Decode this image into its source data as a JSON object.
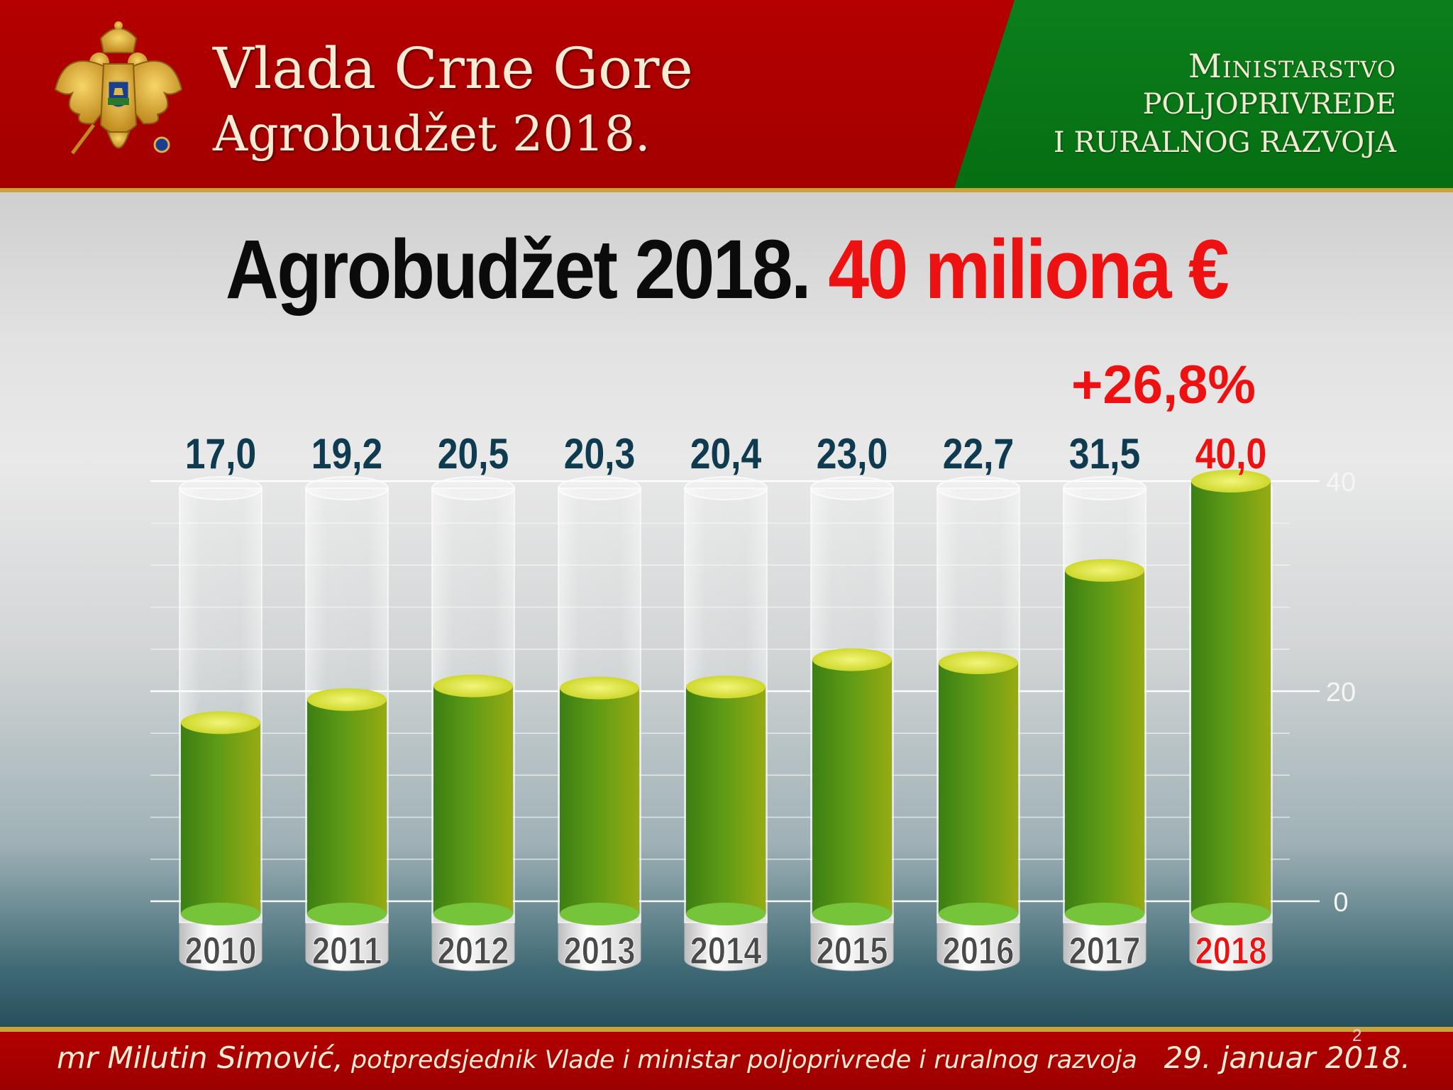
{
  "header": {
    "title_line1": "Vlada Crne Gore",
    "title_line2": "Agrobudžet 2018.",
    "ministry_line1": "Ministarstvo",
    "ministry_line2": "POLJOPRIVREDE",
    "ministry_line3": "I RURALNOG RAZVOJA",
    "red_color": "#a80000",
    "green_color": "#0a7a18"
  },
  "headline": {
    "part1": "Agrobudžet 2018.",
    "part2": "40 miliona €"
  },
  "chart_data": {
    "type": "bar",
    "categories": [
      "2010",
      "2011",
      "2012",
      "2013",
      "2014",
      "2015",
      "2016",
      "2017",
      "2018"
    ],
    "values": [
      17.0,
      19.2,
      20.5,
      20.3,
      20.4,
      23.0,
      22.7,
      31.5,
      40.0
    ],
    "value_labels": [
      "17,0",
      "19,2",
      "20,5",
      "20,3",
      "20,4",
      "23,0",
      "22,7",
      "31,5",
      "40,0"
    ],
    "highlight_index": 8,
    "annotation": "+26,8%",
    "y_ticks": [
      "0",
      "20",
      "40"
    ],
    "ylim": [
      0,
      40
    ],
    "grid": true,
    "title": "",
    "xlabel": "",
    "ylabel": "",
    "colors": {
      "bar": "#5a9a1a",
      "label": "#0e3b4f",
      "highlight": "#ee1111"
    }
  },
  "footer": {
    "name": "mr Milutin Simović,",
    "role": " potpredsjednik Vlade i ministar poljoprivrede i ruralnog razvoja",
    "date": "29. januar 2018.",
    "page": "2"
  }
}
